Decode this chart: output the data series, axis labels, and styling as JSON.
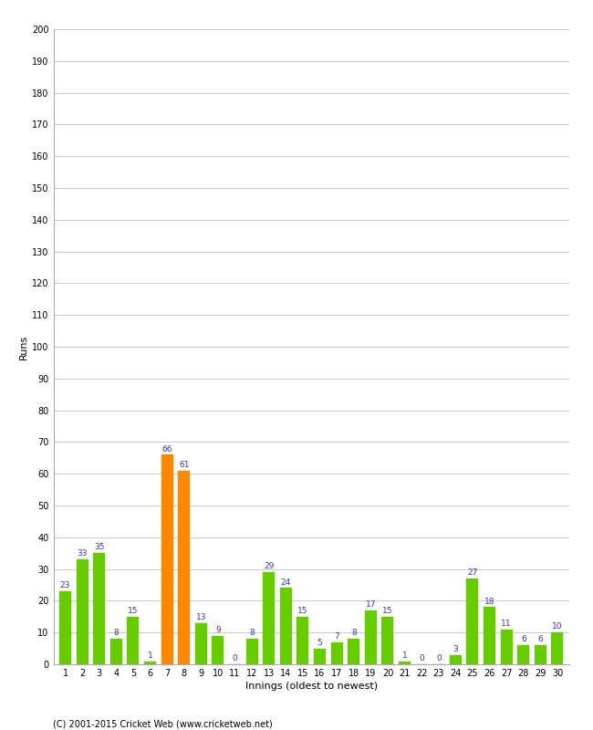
{
  "innings": [
    1,
    2,
    3,
    4,
    5,
    6,
    7,
    8,
    9,
    10,
    11,
    12,
    13,
    14,
    15,
    16,
    17,
    18,
    19,
    20,
    21,
    22,
    23,
    24,
    25,
    26,
    27,
    28,
    29,
    30
  ],
  "values": [
    23,
    33,
    35,
    8,
    15,
    1,
    66,
    61,
    13,
    9,
    0,
    8,
    29,
    24,
    15,
    5,
    7,
    8,
    17,
    15,
    1,
    0,
    0,
    3,
    27,
    18,
    11,
    6,
    6,
    10
  ],
  "bar_colors": [
    "#66cc00",
    "#66cc00",
    "#66cc00",
    "#66cc00",
    "#66cc00",
    "#66cc00",
    "#ff8800",
    "#ff8800",
    "#66cc00",
    "#66cc00",
    "#66cc00",
    "#66cc00",
    "#66cc00",
    "#66cc00",
    "#66cc00",
    "#66cc00",
    "#66cc00",
    "#66cc00",
    "#66cc00",
    "#66cc00",
    "#66cc00",
    "#66cc00",
    "#66cc00",
    "#66cc00",
    "#66cc00",
    "#66cc00",
    "#66cc00",
    "#66cc00",
    "#66cc00",
    "#66cc00"
  ],
  "ylabel": "Runs",
  "xlabel": "Innings (oldest to newest)",
  "ylim": [
    0,
    200
  ],
  "yticks": [
    0,
    10,
    20,
    30,
    40,
    50,
    60,
    70,
    80,
    90,
    100,
    110,
    120,
    130,
    140,
    150,
    160,
    170,
    180,
    190,
    200
  ],
  "title": "",
  "label_color": "#3333cc",
  "label_fontsize": 6.5,
  "bg_color": "#ffffff",
  "grid_color": "#cccccc",
  "axis_label_fontsize": 8,
  "tick_fontsize": 7,
  "copyright": "(C) 2001-2015 Cricket Web (www.cricketweb.net)"
}
